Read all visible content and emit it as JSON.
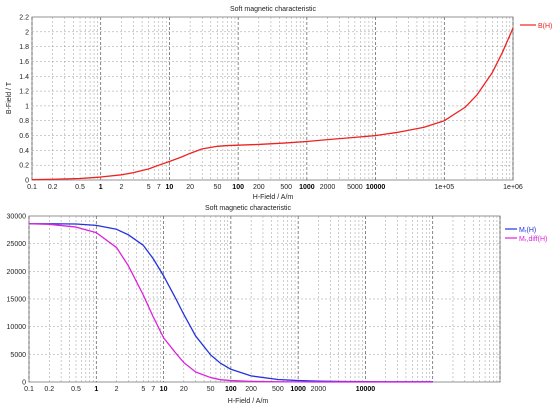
{
  "chart_data": [
    {
      "type": "line",
      "title": "Soft magnetic characteristic",
      "xlabel": "H-Field / A/m",
      "ylabel": "B-Field / T",
      "xscale": "log",
      "xlim": [
        0.1,
        1000000
      ],
      "ylim": [
        0,
        2.2
      ],
      "grid": true,
      "legend": "right",
      "x_tick_labels": [
        "0.1",
        "0.2",
        "0.5",
        "1",
        "2",
        "5",
        "7",
        "10",
        "20",
        "50",
        "100",
        "200",
        "500",
        "1000",
        "2000",
        "5000",
        "10000",
        "1e+05",
        "1e+06"
      ],
      "x_tick_values": [
        0.1,
        0.2,
        0.5,
        1,
        2,
        5,
        7,
        10,
        20,
        50,
        100,
        200,
        500,
        1000,
        2000,
        5000,
        10000,
        100000,
        1000000
      ],
      "y_ticks": [
        0,
        0.2,
        0.4,
        0.6,
        0.8,
        1,
        1.2,
        1.4,
        1.6,
        1.8,
        2,
        2.2
      ],
      "y_tick_labels": [
        "0",
        "0.2",
        "0.4",
        "0.6",
        "0.8",
        "1",
        "1.2",
        "1.4",
        "1.6",
        "1.8",
        "2",
        "2.2"
      ],
      "series": [
        {
          "name": "B(H)",
          "color": "#ee2222",
          "x": [
            0.1,
            0.2,
            0.5,
            1,
            2,
            3,
            5,
            7,
            10,
            15,
            20,
            30,
            50,
            70,
            100,
            200,
            500,
            1000,
            2000,
            5000,
            10000,
            20000,
            50000,
            100000,
            200000,
            300000,
            500000,
            700000,
            1000000
          ],
          "y": [
            0.005,
            0.01,
            0.02,
            0.04,
            0.07,
            0.1,
            0.15,
            0.2,
            0.25,
            0.31,
            0.36,
            0.42,
            0.455,
            0.465,
            0.47,
            0.48,
            0.5,
            0.52,
            0.545,
            0.575,
            0.6,
            0.64,
            0.71,
            0.8,
            0.98,
            1.15,
            1.45,
            1.72,
            2.05
          ]
        }
      ]
    },
    {
      "type": "line",
      "title": "Soft magnetic characteristic",
      "xlabel": "H-Field / A/m",
      "ylabel": "",
      "xscale": "log",
      "xlim": [
        0.1,
        1000000
      ],
      "ylim": [
        0,
        30000
      ],
      "grid": true,
      "legend": "right",
      "x_tick_labels": [
        "0.1",
        "0.2",
        "0.5",
        "1",
        "2",
        "5",
        "7",
        "10",
        "20",
        "50",
        "100",
        "200",
        "500",
        "1000",
        "2000",
        "10000"
      ],
      "x_tick_values": [
        0.1,
        0.2,
        0.5,
        1,
        2,
        5,
        7,
        10,
        20,
        50,
        100,
        200,
        500,
        1000,
        2000,
        10000
      ],
      "y_ticks": [
        0,
        5000,
        10000,
        15000,
        20000,
        25000,
        30000
      ],
      "y_tick_labels": [
        "0",
        "5000",
        "10000",
        "15000",
        "20000",
        "25000",
        "30000"
      ],
      "series": [
        {
          "name": "Mᵣ(H)",
          "color": "#2233dd",
          "x": [
            0.1,
            0.2,
            0.5,
            1,
            2,
            3,
            5,
            7,
            10,
            15,
            20,
            30,
            50,
            70,
            100,
            200,
            500,
            1000,
            2000,
            5000,
            10000,
            30000,
            100000
          ],
          "y": [
            28600,
            28600,
            28550,
            28300,
            27600,
            26600,
            24700,
            22300,
            19200,
            15200,
            12200,
            8300,
            4900,
            3400,
            2300,
            1100,
            450,
            260,
            150,
            80,
            60,
            40,
            30
          ]
        },
        {
          "name": "Mᵣ,diff(H)",
          "color": "#dd22dd",
          "x": [
            0.1,
            0.2,
            0.5,
            1,
            2,
            3,
            5,
            7,
            10,
            15,
            20,
            30,
            50,
            70,
            100,
            200,
            500,
            1000,
            2000,
            5000,
            10000,
            30000,
            100000
          ],
          "y": [
            28600,
            28500,
            28000,
            27000,
            24300,
            21000,
            15700,
            11800,
            8000,
            5300,
            3500,
            1800,
            800,
            420,
            260,
            110,
            40,
            25,
            15,
            10,
            8,
            5,
            3
          ]
        }
      ]
    }
  ]
}
